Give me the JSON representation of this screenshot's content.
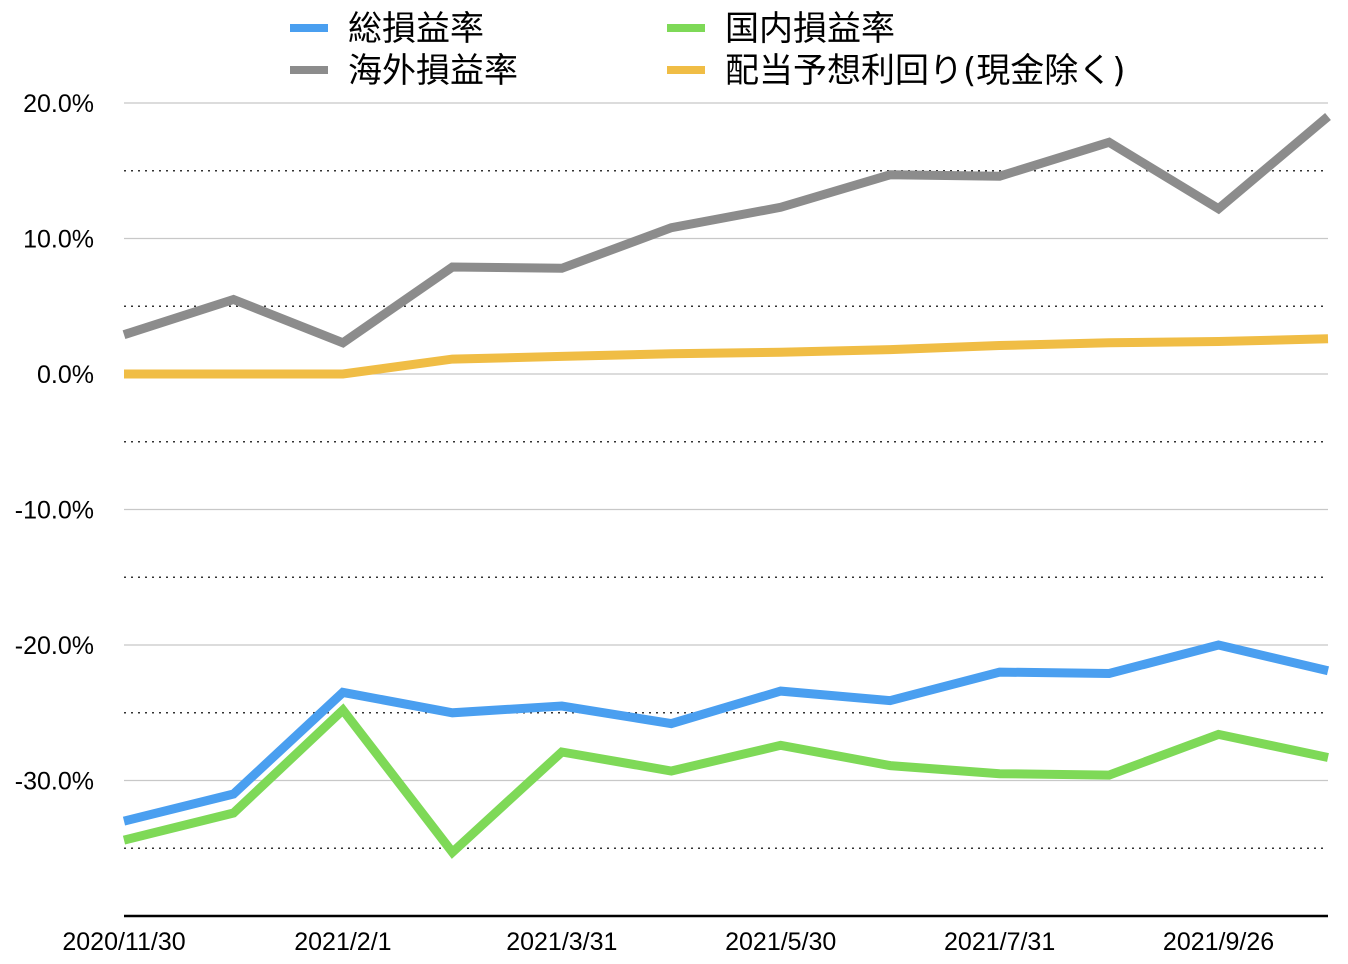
{
  "chart_data": {
    "type": "line",
    "title": "",
    "xlabel": "",
    "ylabel": "",
    "ylim": [
      -40,
      20
    ],
    "y_ticks": [
      20,
      10,
      0,
      -10,
      -20,
      -30
    ],
    "y_tick_labels": [
      "20.0%",
      "10.0%",
      "0.0%",
      "-10.0%",
      "-20.0%",
      "-30.0%"
    ],
    "grid": "major solid, minor dotted",
    "legend_position": "top",
    "x": [
      "2020/11/30",
      "",
      "2021/2/1",
      "",
      "2021/3/31",
      "",
      "2021/5/30",
      "",
      "2021/7/31",
      "",
      "2021/9/26",
      ""
    ],
    "x_tick_labels": [
      "2020/11/30",
      "2021/2/1",
      "2021/3/31",
      "2021/5/30",
      "2021/7/31",
      "2021/9/26"
    ],
    "series": [
      {
        "name": "総損益率",
        "color": "#4a9ff0",
        "values": [
          -33.0,
          -31.0,
          -23.5,
          -25.0,
          -24.5,
          -25.8,
          -23.4,
          -24.1,
          -22.0,
          -22.1,
          -20.0,
          -21.9
        ]
      },
      {
        "name": "国内損益率",
        "color": "#7ed957",
        "values": [
          -34.4,
          -32.4,
          -24.8,
          -35.3,
          -27.9,
          -29.3,
          -27.4,
          -28.9,
          -29.5,
          -29.6,
          -26.6,
          -28.3
        ]
      },
      {
        "name": "海外損益率",
        "color": "#8c8c8c",
        "values": [
          2.9,
          5.5,
          2.3,
          7.9,
          7.8,
          10.8,
          12.3,
          14.7,
          14.6,
          17.1,
          12.2,
          19.0
        ]
      },
      {
        "name": "配当予想利回り(現金除く)",
        "color": "#f0bd45",
        "values": [
          0.0,
          0.0,
          0.0,
          1.1,
          1.3,
          1.5,
          1.6,
          1.8,
          2.1,
          2.3,
          2.4,
          2.6
        ]
      }
    ]
  }
}
